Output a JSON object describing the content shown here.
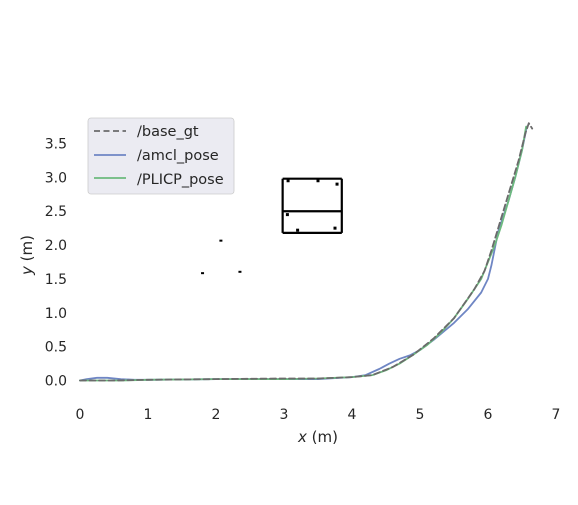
{
  "chart_data": {
    "type": "line",
    "title": "",
    "xlabel": {
      "var": "x",
      "unit": "(m)"
    },
    "ylabel": {
      "var": "y",
      "unit": "(m)"
    },
    "xlim": [
      0,
      7
    ],
    "ylim": [
      -0.35,
      3.85
    ],
    "xticks": [
      0,
      1,
      2,
      3,
      4,
      5,
      6,
      7
    ],
    "yticks": [
      0.0,
      0.5,
      1.0,
      1.5,
      2.0,
      2.5,
      3.0,
      3.5
    ],
    "xtick_labels": [
      "0",
      "1",
      "2",
      "3",
      "4",
      "5",
      "6",
      "7"
    ],
    "ytick_labels": [
      "0.0",
      "0.5",
      "1.0",
      "1.5",
      "2.0",
      "2.5",
      "3.0",
      "3.5"
    ],
    "grid": false,
    "legend_position": "top-left",
    "colors": {
      "base_gt": "#6b6b6b",
      "amcl_pose": "#6f86c4",
      "PLICP_pose": "#6dba7e",
      "legend_bg": "#ebebf2",
      "map": "#000000"
    },
    "series": [
      {
        "name": "/base_gt",
        "style": "dashed",
        "x": [
          0.0,
          0.5,
          1.0,
          2.0,
          3.0,
          3.5,
          4.0,
          4.3,
          4.6,
          4.9,
          5.2,
          5.5,
          5.8,
          5.95,
          6.05,
          6.15,
          6.3,
          6.45,
          6.55,
          6.6,
          6.65
        ],
        "y": [
          0.0,
          0.0,
          0.01,
          0.02,
          0.03,
          0.03,
          0.05,
          0.08,
          0.2,
          0.38,
          0.62,
          0.92,
          1.35,
          1.62,
          1.92,
          2.25,
          2.75,
          3.25,
          3.65,
          3.8,
          3.72
        ]
      },
      {
        "name": "/amcl_pose",
        "style": "solid",
        "x": [
          0.0,
          0.1,
          0.25,
          0.4,
          0.6,
          0.8,
          1.0,
          2.0,
          3.0,
          3.5,
          4.0,
          4.2,
          4.4,
          4.55,
          4.7,
          4.85,
          5.0,
          5.2,
          5.5,
          5.7,
          5.9,
          6.0,
          6.05,
          6.1,
          6.15,
          6.2,
          6.3,
          6.4,
          6.5,
          6.57
        ],
        "y": [
          0.0,
          0.02,
          0.04,
          0.04,
          0.02,
          0.01,
          0.01,
          0.02,
          0.02,
          0.02,
          0.05,
          0.08,
          0.17,
          0.25,
          0.32,
          0.37,
          0.45,
          0.6,
          0.85,
          1.05,
          1.3,
          1.5,
          1.7,
          1.95,
          2.2,
          2.35,
          2.65,
          3.0,
          3.4,
          3.75
        ]
      },
      {
        "name": "/PLICP_pose",
        "style": "solid",
        "x": [
          0.0,
          0.3,
          0.6,
          1.0,
          2.0,
          3.0,
          3.5,
          4.0,
          4.3,
          4.5,
          4.7,
          4.9,
          5.1,
          5.3,
          5.5,
          5.7,
          5.9,
          6.0,
          6.1,
          6.2,
          6.3,
          6.4,
          6.5,
          6.56
        ],
        "y": [
          0.0,
          0.0,
          0.0,
          0.01,
          0.02,
          0.02,
          0.03,
          0.05,
          0.08,
          0.15,
          0.25,
          0.38,
          0.52,
          0.7,
          0.92,
          1.2,
          1.5,
          1.75,
          2.0,
          2.3,
          2.65,
          3.0,
          3.4,
          3.75
        ]
      }
    ]
  }
}
